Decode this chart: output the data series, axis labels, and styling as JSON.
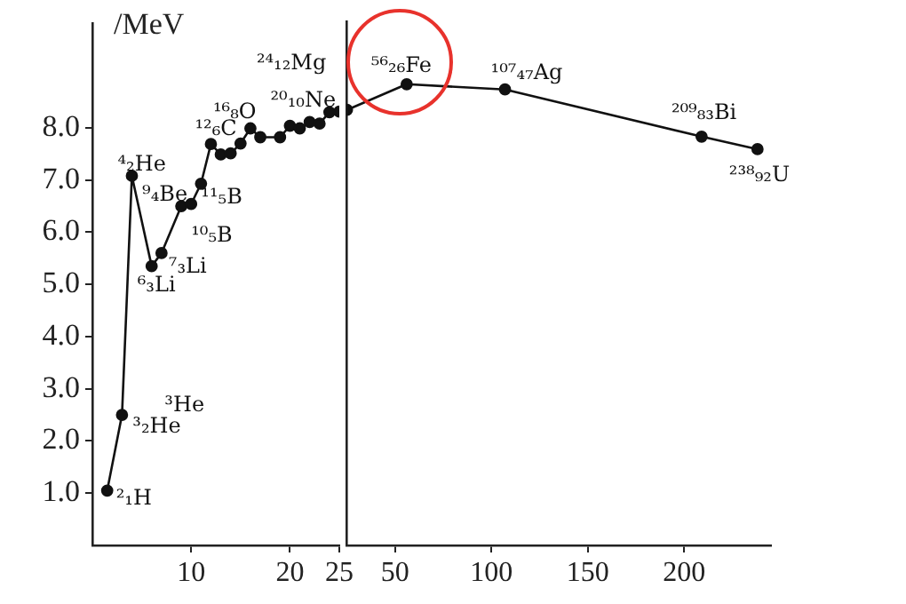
{
  "chart_data": [
    {
      "type": "line",
      "ylabel": "/MeV",
      "x": [
        1.5,
        3,
        4,
        6,
        7,
        9,
        10,
        11,
        12,
        13,
        14,
        15,
        16,
        17,
        19,
        20,
        21,
        22,
        23,
        24,
        25
      ],
      "series": [
        {
          "color": "#111111",
          "values": [
            1.05,
            2.5,
            7.08,
            5.35,
            5.6,
            6.5,
            6.54,
            6.93,
            7.69,
            7.49,
            7.51,
            7.7,
            7.99,
            7.82,
            7.82,
            8.04,
            7.99,
            8.11,
            8.08,
            8.3,
            8.31
          ]
        }
      ],
      "xlim": [
        0,
        25
      ],
      "xticks": [
        10,
        20,
        25
      ],
      "ylim": [
        0,
        10
      ],
      "yticks": [
        {
          "value": 1,
          "label": "1.0"
        },
        {
          "value": 2,
          "label": "2.0"
        },
        {
          "value": 3,
          "label": "3.0"
        },
        {
          "value": 4,
          "label": "4.0"
        },
        {
          "value": 5,
          "label": "5.0"
        },
        {
          "value": 6,
          "label": "6.0"
        },
        {
          "value": 7,
          "label": "7.0"
        },
        {
          "value": 8,
          "label": "8.0"
        }
      ],
      "marker": "circle",
      "grid": false,
      "legend": false,
      "annotations": [
        {
          "text": "²₁H",
          "x": 1.5,
          "y": 1.05
        },
        {
          "text": "³₂He",
          "x": 3,
          "y": 2.5
        },
        {
          "text": "³He",
          "x": 3,
          "y": 2.5
        },
        {
          "text": "⁴₂He",
          "x": 4,
          "y": 7.08
        },
        {
          "text": "⁶₃Li",
          "x": 6,
          "y": 5.35
        },
        {
          "text": "⁷₃Li",
          "x": 7,
          "y": 5.6
        },
        {
          "text": "⁹₄Be",
          "x": 9,
          "y": 6.5
        },
        {
          "text": "¹⁰₅B",
          "x": 10,
          "y": 6.54
        },
        {
          "text": "¹¹₅B",
          "x": 11,
          "y": 6.93
        },
        {
          "text": "¹²₆C",
          "x": 12,
          "y": 7.69
        },
        {
          "text": "¹⁶₈O",
          "x": 16,
          "y": 7.99
        },
        {
          "text": "²⁰₁₀Ne",
          "x": 20,
          "y": 8.04
        },
        {
          "text": "²⁴₁₂Mg",
          "x": 24,
          "y": 8.3
        }
      ]
    },
    {
      "type": "line",
      "x": [
        25,
        56,
        107,
        209,
        238
      ],
      "series": [
        {
          "color": "#111111",
          "values": [
            8.31,
            8.8,
            8.7,
            7.8,
            7.56
          ]
        }
      ],
      "xlim": [
        25,
        245
      ],
      "xticks": [
        50,
        100,
        150,
        200
      ],
      "ylim": [
        0,
        10
      ],
      "tick_labels": "x",
      "marker": "circle",
      "grid": false,
      "legend": false,
      "annotations": [
        {
          "text": "⁵⁶₂₆Fe",
          "x": 56,
          "y": 8.8
        },
        {
          "text": "¹⁰⁷₄₇Ag",
          "x": 107,
          "y": 8.7
        },
        {
          "text": "²⁰⁹₈₃Bi",
          "x": 209,
          "y": 7.8
        },
        {
          "text": "²³⁸₉₂U",
          "x": 238,
          "y": 7.56
        }
      ]
    }
  ]
}
